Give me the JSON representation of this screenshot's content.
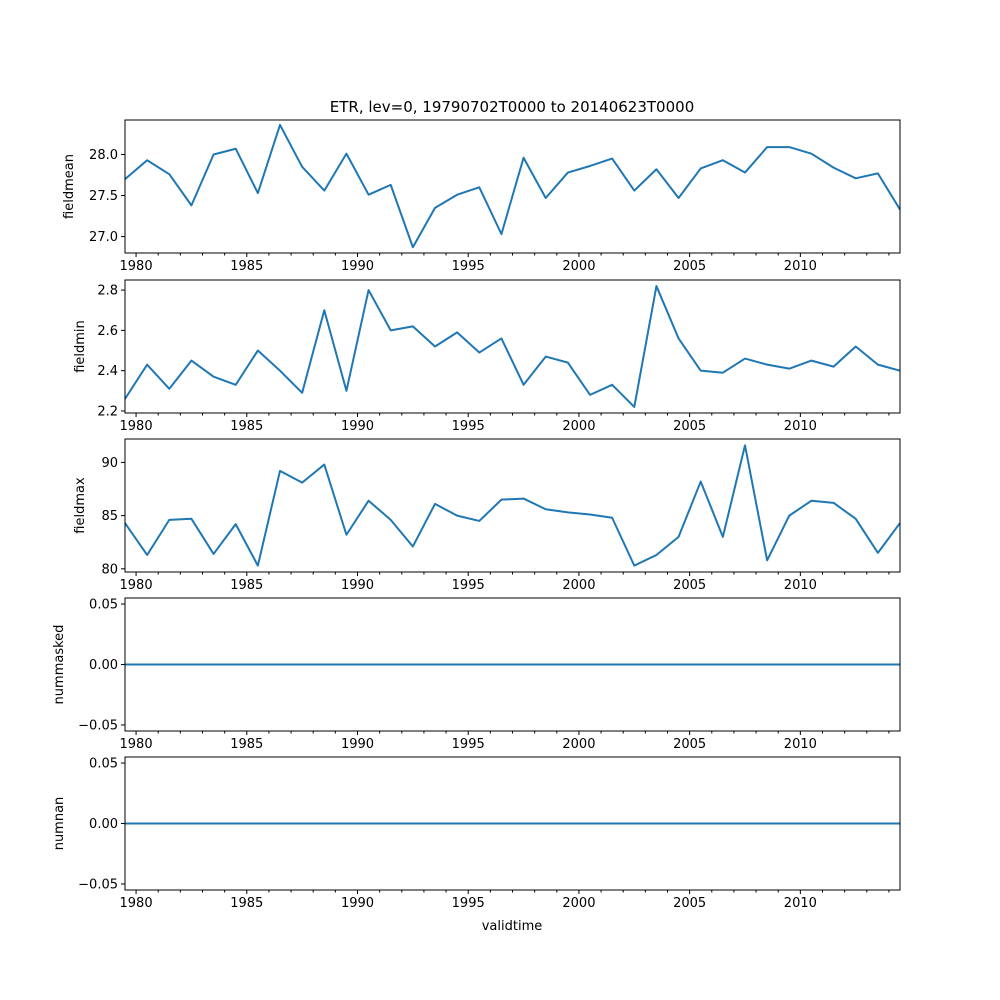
{
  "chart_data": {
    "type": "line",
    "title": "ETR, lev=0, 19790702T0000 to 20140623T0000",
    "xlabel": "validtime",
    "line_color": "#1f77b4",
    "x": [
      1979.5,
      1980.5,
      1981.5,
      1982.5,
      1983.5,
      1984.5,
      1985.5,
      1986.5,
      1987.5,
      1988.5,
      1989.5,
      1990.5,
      1991.5,
      1992.5,
      1993.5,
      1994.5,
      1995.5,
      1996.5,
      1997.5,
      1998.5,
      1999.5,
      2000.5,
      2001.5,
      2002.5,
      2003.5,
      2004.5,
      2005.5,
      2006.5,
      2007.5,
      2008.5,
      2009.5,
      2010.5,
      2011.5,
      2012.5,
      2013.5,
      2014.5
    ],
    "xlim": [
      1979.5,
      2014.5
    ],
    "xticks": [
      1980,
      1985,
      1990,
      1995,
      2000,
      2005,
      2010
    ],
    "xtick_labels": [
      "1980",
      "1985",
      "1990",
      "1995",
      "2000",
      "2005",
      "2010"
    ],
    "minor_xticks": [
      1981,
      1982,
      1983,
      1984,
      1986,
      1987,
      1988,
      1989,
      1991,
      1992,
      1993,
      1994,
      1996,
      1997,
      1998,
      1999,
      2001,
      2002,
      2003,
      2004,
      2006,
      2007,
      2008,
      2009,
      2011,
      2012,
      2013,
      2014
    ],
    "panels": [
      {
        "ylabel": "fieldmean",
        "ylim": [
          26.8,
          28.42
        ],
        "yticks": [
          27.0,
          27.5,
          28.0
        ],
        "ytick_labels": [
          "27.0",
          "27.5",
          "28.0"
        ],
        "values": [
          27.7,
          27.93,
          27.76,
          27.38,
          28.0,
          28.07,
          27.53,
          28.36,
          27.85,
          27.56,
          28.01,
          27.51,
          27.63,
          26.87,
          27.35,
          27.51,
          27.6,
          27.03,
          27.96,
          27.47,
          27.78,
          27.86,
          27.95,
          27.56,
          27.82,
          27.47,
          27.83,
          27.93,
          27.78,
          28.09,
          28.09,
          28.01,
          27.84,
          27.71,
          27.77,
          27.33
        ]
      },
      {
        "ylabel": "fieldmin",
        "ylim": [
          2.19,
          2.85
        ],
        "yticks": [
          2.2,
          2.4,
          2.6,
          2.8
        ],
        "ytick_labels": [
          "2.2",
          "2.4",
          "2.6",
          "2.8"
        ],
        "values": [
          2.26,
          2.43,
          2.31,
          2.45,
          2.37,
          2.33,
          2.5,
          2.4,
          2.29,
          2.7,
          2.3,
          2.8,
          2.6,
          2.62,
          2.52,
          2.59,
          2.49,
          2.56,
          2.33,
          2.47,
          2.44,
          2.28,
          2.33,
          2.22,
          2.82,
          2.56,
          2.4,
          2.39,
          2.46,
          2.43,
          2.41,
          2.45,
          2.42,
          2.52,
          2.43,
          2.4
        ]
      },
      {
        "ylabel": "fieldmax",
        "ylim": [
          79.7,
          92.2
        ],
        "yticks": [
          80,
          85,
          90
        ],
        "ytick_labels": [
          "80",
          "85",
          "90"
        ],
        "values": [
          84.3,
          81.3,
          84.6,
          84.7,
          81.4,
          84.2,
          80.3,
          89.2,
          88.1,
          89.8,
          83.2,
          86.4,
          84.6,
          82.1,
          86.1,
          85.0,
          84.5,
          86.5,
          86.6,
          85.6,
          85.3,
          85.1,
          84.8,
          80.3,
          81.3,
          83.0,
          88.2,
          83.0,
          91.6,
          80.8,
          85.0,
          86.4,
          86.2,
          84.7,
          81.5,
          84.3
        ]
      },
      {
        "ylabel": "nummasked",
        "ylim": [
          -0.055,
          0.055
        ],
        "yticks": [
          -0.05,
          0.0,
          0.05
        ],
        "ytick_labels": [
          "−0.05",
          "0.00",
          "0.05"
        ],
        "values": [
          0,
          0,
          0,
          0,
          0,
          0,
          0,
          0,
          0,
          0,
          0,
          0,
          0,
          0,
          0,
          0,
          0,
          0,
          0,
          0,
          0,
          0,
          0,
          0,
          0,
          0,
          0,
          0,
          0,
          0,
          0,
          0,
          0,
          0,
          0,
          0
        ]
      },
      {
        "ylabel": "numnan",
        "ylim": [
          -0.055,
          0.055
        ],
        "yticks": [
          -0.05,
          0.0,
          0.05
        ],
        "ytick_labels": [
          "−0.05",
          "0.00",
          "0.05"
        ],
        "values": [
          0,
          0,
          0,
          0,
          0,
          0,
          0,
          0,
          0,
          0,
          0,
          0,
          0,
          0,
          0,
          0,
          0,
          0,
          0,
          0,
          0,
          0,
          0,
          0,
          0,
          0,
          0,
          0,
          0,
          0,
          0,
          0,
          0,
          0,
          0,
          0
        ]
      }
    ]
  }
}
